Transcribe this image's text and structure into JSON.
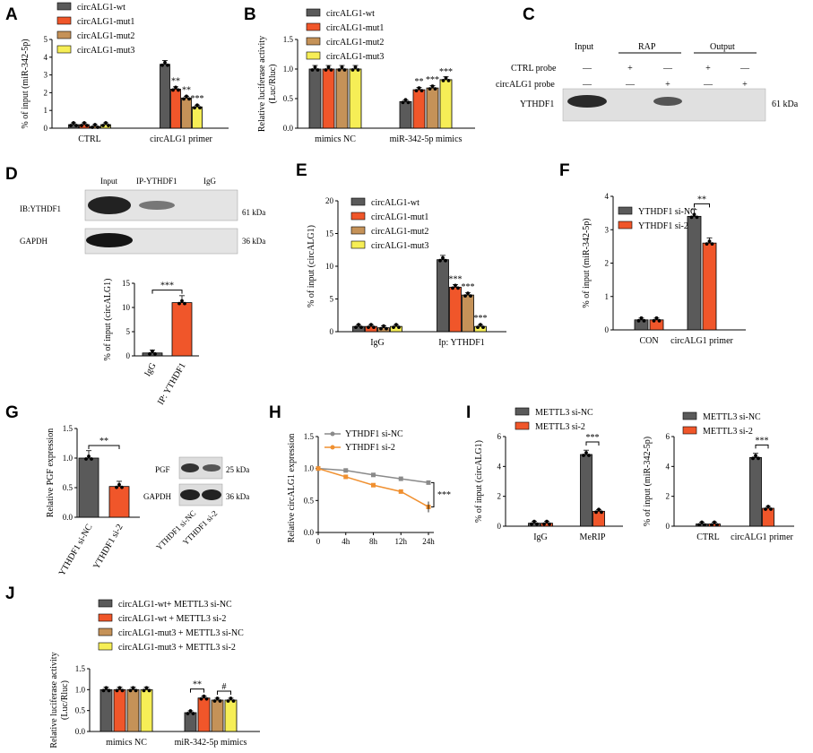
{
  "colors": {
    "c1": "#5a5a5a",
    "c2": "#f0562a",
    "c3": "#c59258",
    "c4": "#f6ee56",
    "gray": "#8a8a8a",
    "orange": "#f09030"
  },
  "panels": {
    "A": "A",
    "B": "B",
    "C": "C",
    "D": "D",
    "E": "E",
    "F": "F",
    "G": "G",
    "H": "H",
    "I": "I",
    "J": "J"
  },
  "chart_data": [
    {
      "id": "A",
      "type": "bar",
      "ylabel": "% of input (miR-342-5p)",
      "ylim": [
        0,
        5
      ],
      "yticks": [
        "0",
        "1",
        "2",
        "3",
        "4",
        "5"
      ],
      "categories": [
        "CTRL",
        "circALG1 primer"
      ],
      "series": [
        {
          "name": "circALG1-wt",
          "values": [
            0.2,
            3.6
          ]
        },
        {
          "name": "circALG1-mut1",
          "values": [
            0.2,
            2.2
          ]
        },
        {
          "name": "circALG1-mut2",
          "values": [
            0.1,
            1.7
          ]
        },
        {
          "name": "circALG1-mut3",
          "values": [
            0.2,
            1.2
          ]
        }
      ],
      "annotations": [
        "**",
        "**",
        "***"
      ],
      "legend": "top-left"
    },
    {
      "id": "B",
      "type": "bar",
      "ylabel": "Relative  luciferase activity (Luc/Rluc)",
      "ylim": [
        0,
        1.5
      ],
      "yticks": [
        "0.0",
        "0.5",
        "1.0",
        "1.5"
      ],
      "categories": [
        "mimics NC",
        "miR-342-5p mimics"
      ],
      "series": [
        {
          "name": "circALG1-wt",
          "values": [
            1.0,
            0.45
          ]
        },
        {
          "name": "circALG1-mut1",
          "values": [
            1.0,
            0.65
          ]
        },
        {
          "name": "circALG1-mut2",
          "values": [
            1.0,
            0.68
          ]
        },
        {
          "name": "circALG1-mut3",
          "values": [
            1.0,
            0.82
          ]
        }
      ],
      "annotations": [
        "**",
        "***",
        "***"
      ],
      "legend": "top-left"
    },
    {
      "id": "D",
      "type": "bar",
      "ylabel": "% of input (circALG1)",
      "ylim": [
        0,
        15
      ],
      "yticks": [
        "0",
        "5",
        "10",
        "15"
      ],
      "categories": [
        "IgG",
        "IP: YTHDF1"
      ],
      "series": [
        {
          "name": "",
          "values": [
            0.6,
            11.0
          ]
        }
      ],
      "annotations": [
        "***"
      ]
    },
    {
      "id": "E",
      "type": "bar",
      "ylabel": "% of input (circALG1)",
      "ylim": [
        0,
        20
      ],
      "yticks": [
        "0",
        "5",
        "10",
        "15",
        "20"
      ],
      "categories": [
        "IgG",
        "Ip: YTHDF1"
      ],
      "series": [
        {
          "name": "circALG1-wt",
          "values": [
            0.8,
            11.0
          ]
        },
        {
          "name": "circALG1-mut1",
          "values": [
            0.8,
            6.8
          ]
        },
        {
          "name": "circALG1-mut2",
          "values": [
            0.6,
            5.6
          ]
        },
        {
          "name": "circALG1-mut3",
          "values": [
            0.8,
            0.8
          ]
        }
      ],
      "annotations": [
        "***",
        "***",
        "***"
      ],
      "legend": "top-left"
    },
    {
      "id": "F",
      "type": "bar",
      "ylabel": "% of input (miR-342-5p)",
      "ylim": [
        0,
        4
      ],
      "yticks": [
        "0",
        "1",
        "2",
        "3",
        "4"
      ],
      "categories": [
        "CON",
        "circALG1 primer"
      ],
      "series": [
        {
          "name": "YTHDF1 si-NC",
          "values": [
            0.3,
            3.4
          ]
        },
        {
          "name": "YTHDF1 si-2",
          "values": [
            0.3,
            2.6
          ]
        }
      ],
      "annotations": [
        "**"
      ],
      "legend": "top-left"
    },
    {
      "id": "G",
      "type": "bar",
      "ylabel": "Relative PGF expression",
      "ylim": [
        0,
        1.5
      ],
      "yticks": [
        "0.0",
        "0.5",
        "1.0",
        "1.5"
      ],
      "categories": [
        "YTHDF1 si-NC",
        "YTHDF1 si-2"
      ],
      "series": [
        {
          "name": "",
          "values": [
            1.0,
            0.52
          ]
        }
      ],
      "annotations": [
        "**"
      ]
    },
    {
      "id": "H",
      "type": "line",
      "ylabel": "Relative circALG1 expression",
      "ylim": [
        0,
        1.5
      ],
      "yticks": [
        "0.0",
        "0.5",
        "1.0",
        "1.5"
      ],
      "x": [
        "0",
        "4h",
        "8h",
        "12h",
        "24h"
      ],
      "series": [
        {
          "name": "YTHDF1 si-NC",
          "values": [
            1.0,
            0.97,
            0.9,
            0.84,
            0.78
          ]
        },
        {
          "name": "YTHDF1 si-2",
          "values": [
            1.0,
            0.87,
            0.74,
            0.64,
            0.4
          ]
        }
      ],
      "annotations": [
        "***"
      ],
      "legend": "top-left"
    },
    {
      "id": "I1",
      "type": "bar",
      "ylabel": "% of input (circALG1)",
      "ylim": [
        0,
        6
      ],
      "yticks": [
        "0",
        "2",
        "4",
        "6"
      ],
      "categories": [
        "IgG",
        "MeRIP"
      ],
      "series": [
        {
          "name": "METTL3 si-NC",
          "values": [
            0.2,
            4.8
          ]
        },
        {
          "name": "METTL3 si-2",
          "values": [
            0.2,
            1.0
          ]
        }
      ],
      "annotations": [
        "***"
      ],
      "legend": "top-left"
    },
    {
      "id": "I2",
      "type": "bar",
      "ylabel": "% of input (miR-342-5p)",
      "ylim": [
        0,
        6
      ],
      "yticks": [
        "0",
        "2",
        "4",
        "6"
      ],
      "categories": [
        "CTRL",
        "circALG1 primer"
      ],
      "series": [
        {
          "name": "METTL3 si-NC",
          "values": [
            0.15,
            4.6
          ]
        },
        {
          "name": "METTL3 si-2",
          "values": [
            0.15,
            1.2
          ]
        }
      ],
      "annotations": [
        "***"
      ],
      "legend": "top-left"
    },
    {
      "id": "J",
      "type": "bar",
      "ylabel": "Relative  luciferase activity (Luc/Rluc)",
      "ylim": [
        0,
        1.5
      ],
      "yticks": [
        "0.0",
        "0.5",
        "1.0",
        "1.5"
      ],
      "categories": [
        "mimics NC",
        "miR-342-5p mimics"
      ],
      "series": [
        {
          "name": "circALG1-wt+ METTL3 si-NC",
          "values": [
            1.0,
            0.45
          ]
        },
        {
          "name": "circALG1-wt + METTL3 si-2",
          "values": [
            1.0,
            0.8
          ]
        },
        {
          "name": "circALG1-mut3 + METTL3 si-NC",
          "values": [
            1.0,
            0.75
          ]
        },
        {
          "name": "circALG1-mut3 + METTL3 si-2",
          "values": [
            1.0,
            0.75
          ]
        }
      ],
      "annotations": [
        "**",
        "#"
      ],
      "legend": "top-left"
    }
  ],
  "blots": {
    "C": {
      "headers": [
        "Input",
        "RAP",
        "Output"
      ],
      "rows": [
        "CTRL probe",
        "circALG1 probe"
      ],
      "row1": [
        "—",
        "+",
        "—",
        "+",
        "—"
      ],
      "row2": [
        "—",
        "—",
        "+",
        "—",
        "+"
      ],
      "band": "YTHDF1",
      "kda": "61 kDa"
    },
    "D": {
      "headers": [
        "Input",
        "IP-YTHDF1",
        "IgG"
      ],
      "bands": [
        "IB:YTHDF1",
        "GAPDH"
      ],
      "kdas": [
        "61 kDa",
        "36 kDa"
      ]
    },
    "G": {
      "bands": [
        "PGF",
        "GAPDH"
      ],
      "kdas": [
        "25 kDa",
        "36 kDa"
      ],
      "lanes": [
        "YTHDF1 si-NC",
        "YTHDF1 si-2"
      ]
    }
  }
}
